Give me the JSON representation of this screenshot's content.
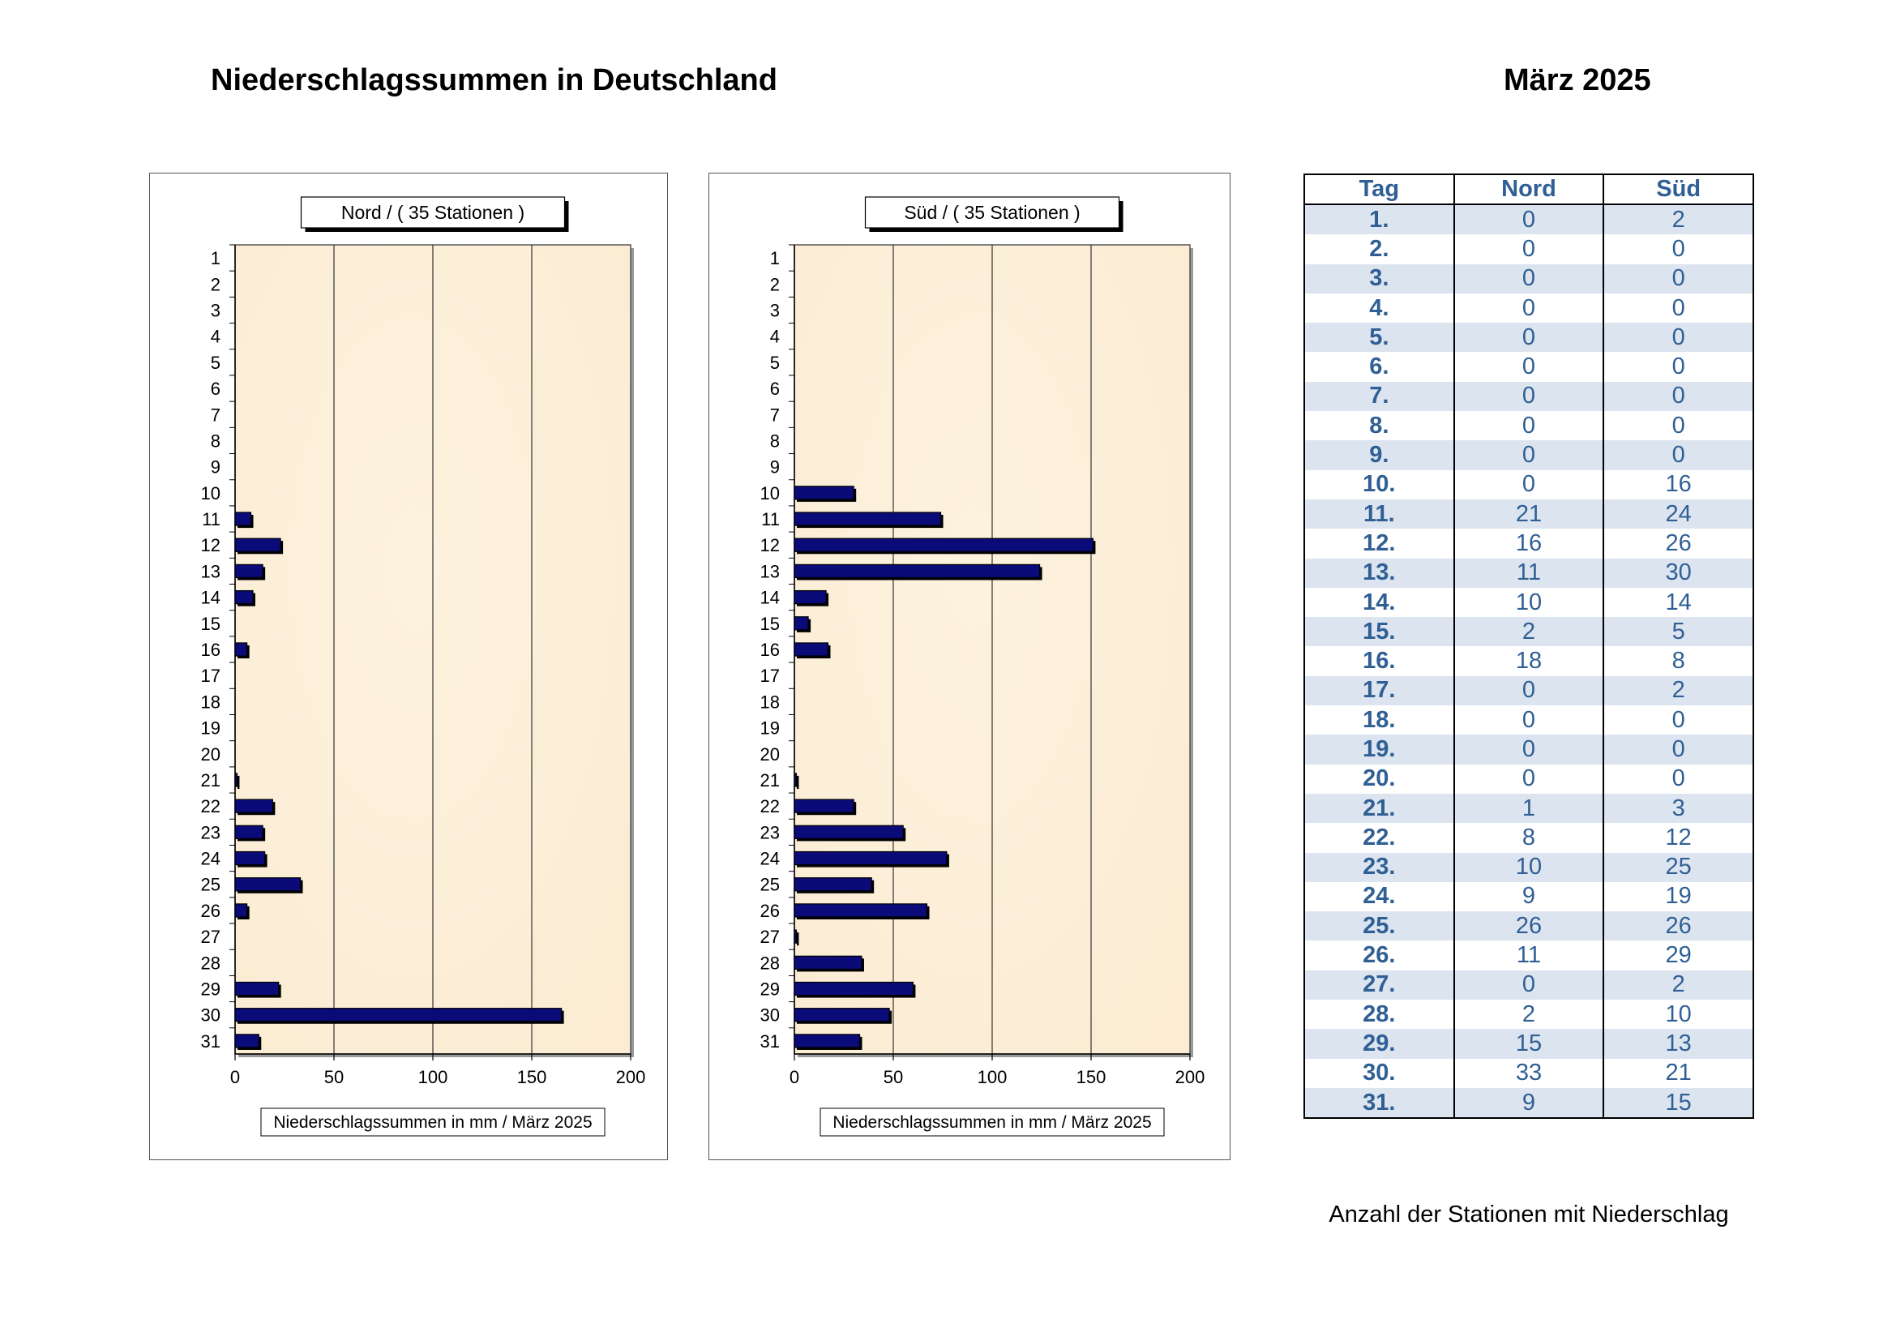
{
  "header": {
    "title": "Niederschlagssummen in Deutschland",
    "period": "März  2025"
  },
  "chart_data": [
    {
      "type": "bar",
      "orientation": "horizontal",
      "title": "Nord  /  ( 35 Stationen )",
      "xlabel": "Niederschlagssummen in mm / März 2025",
      "categories": [
        "1",
        "2",
        "3",
        "4",
        "5",
        "6",
        "7",
        "8",
        "9",
        "10",
        "11",
        "12",
        "13",
        "14",
        "15",
        "16",
        "17",
        "18",
        "19",
        "20",
        "21",
        "22",
        "23",
        "24",
        "25",
        "26",
        "27",
        "28",
        "29",
        "30",
        "31"
      ],
      "values": [
        0,
        0,
        0,
        0,
        0,
        0,
        0,
        0,
        0,
        0,
        8,
        23,
        14,
        9,
        0,
        6,
        0,
        0,
        0,
        0,
        1,
        19,
        14,
        15,
        33,
        6,
        0,
        0,
        22,
        165,
        12
      ],
      "xlim": [
        0,
        200
      ],
      "xticks": [
        "0",
        "50",
        "100",
        "150",
        "200"
      ],
      "grid": true
    },
    {
      "type": "bar",
      "orientation": "horizontal",
      "title": "Süd  /  ( 35 Stationen )",
      "xlabel": "Niederschlagssummen in mm / März 2025",
      "categories": [
        "1",
        "2",
        "3",
        "4",
        "5",
        "6",
        "7",
        "8",
        "9",
        "10",
        "11",
        "12",
        "13",
        "14",
        "15",
        "16",
        "17",
        "18",
        "19",
        "20",
        "21",
        "22",
        "23",
        "24",
        "25",
        "26",
        "27",
        "28",
        "29",
        "30",
        "31"
      ],
      "values": [
        0,
        0,
        0,
        0,
        0,
        0,
        0,
        0,
        0,
        30,
        74,
        151,
        124,
        16,
        7,
        17,
        0,
        0,
        0,
        0,
        1,
        30,
        55,
        77,
        39,
        67,
        1,
        34,
        60,
        48,
        33
      ],
      "xlim": [
        0,
        200
      ],
      "xticks": [
        "0",
        "50",
        "100",
        "150",
        "200"
      ],
      "grid": true
    }
  ],
  "stations_table": {
    "headers": [
      "Tag",
      "Nord",
      "Süd"
    ],
    "rows": [
      [
        "1.",
        "0",
        "2"
      ],
      [
        "2.",
        "0",
        "0"
      ],
      [
        "3.",
        "0",
        "0"
      ],
      [
        "4.",
        "0",
        "0"
      ],
      [
        "5.",
        "0",
        "0"
      ],
      [
        "6.",
        "0",
        "0"
      ],
      [
        "7.",
        "0",
        "0"
      ],
      [
        "8.",
        "0",
        "0"
      ],
      [
        "9.",
        "0",
        "0"
      ],
      [
        "10.",
        "0",
        "16"
      ],
      [
        "11.",
        "21",
        "24"
      ],
      [
        "12.",
        "16",
        "26"
      ],
      [
        "13.",
        "11",
        "30"
      ],
      [
        "14.",
        "10",
        "14"
      ],
      [
        "15.",
        "2",
        "5"
      ],
      [
        "16.",
        "18",
        "8"
      ],
      [
        "17.",
        "0",
        "2"
      ],
      [
        "18.",
        "0",
        "0"
      ],
      [
        "19.",
        "0",
        "0"
      ],
      [
        "20.",
        "0",
        "0"
      ],
      [
        "21.",
        "1",
        "3"
      ],
      [
        "22.",
        "8",
        "12"
      ],
      [
        "23.",
        "10",
        "25"
      ],
      [
        "24.",
        "9",
        "19"
      ],
      [
        "25.",
        "26",
        "26"
      ],
      [
        "26.",
        "11",
        "29"
      ],
      [
        "27.",
        "0",
        "2"
      ],
      [
        "28.",
        "2",
        "10"
      ],
      [
        "29.",
        "15",
        "13"
      ],
      [
        "30.",
        "33",
        "21"
      ],
      [
        "31.",
        "9",
        "15"
      ]
    ],
    "caption": "Anzahl der Stationen mit Niederschlag"
  },
  "colors": {
    "bar_fill": "#0a0a78",
    "plot_background": "#fbecd3",
    "table_text": "#2f5f94",
    "table_stripe": "#dce4f0"
  }
}
